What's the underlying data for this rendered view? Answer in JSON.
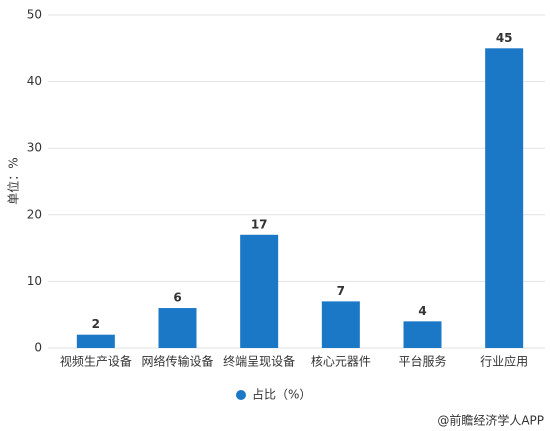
{
  "chart_data": {
    "type": "bar",
    "y_label": "单位：%",
    "categories": [
      "视频生产设备",
      "网络传输设备",
      "终端呈现设备",
      "核心元器件",
      "平台服务",
      "行业应用"
    ],
    "series": [
      {
        "name": "占比（%）",
        "color": "#1b78c6",
        "values": [
          2,
          6,
          17,
          7,
          4,
          45
        ]
      }
    ],
    "ylim": [
      0,
      50
    ],
    "yticks": [
      0,
      10,
      20,
      30,
      40,
      50
    ],
    "grid": true,
    "source": "@前瞻经济学人APP"
  }
}
